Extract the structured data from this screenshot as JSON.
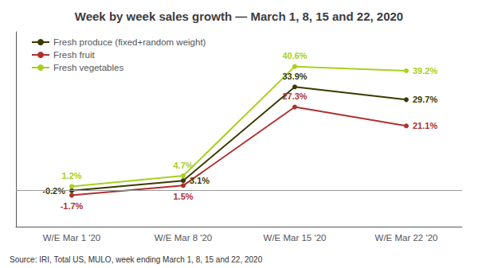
{
  "chart_data": {
    "type": "line",
    "title": "Week by week sales growth — March 1, 8, 15 and 22, 2020",
    "categories": [
      "W/E Mar 1 '20",
      "W/E Mar 8 '20",
      "W/E Mar 15 '20",
      "W/E Mar 22 '20"
    ],
    "series": [
      {
        "name": "Fresh produce (fixed+random weight)",
        "color": "#3a3a00",
        "values": [
          -0.2,
          3.1,
          33.9,
          29.7
        ],
        "value_labels": [
          "-0.2%",
          "3.1%",
          "33.9%",
          "29.7%"
        ]
      },
      {
        "name": "Fresh fruit",
        "color": "#b03030",
        "values": [
          -1.7,
          1.5,
          27.3,
          21.1
        ],
        "value_labels": [
          "-1.7%",
          "1.5%",
          "27.3%",
          "21.1%"
        ]
      },
      {
        "name": "Fresh vegetables",
        "color": "#a8d020",
        "values": [
          1.2,
          4.7,
          40.6,
          39.2
        ],
        "value_labels": [
          "1.2%",
          "4.7%",
          "40.6%",
          "39.2%"
        ]
      }
    ],
    "ylim": [
      -12,
      52
    ],
    "data_labels": true,
    "tick_labels": "x",
    "grid": false,
    "legend": "upper left",
    "marker": "circle",
    "annotations": [
      "Source: IRI, Total US, MULO, week ending March 1, 8, 15 and 22, 2020"
    ]
  }
}
